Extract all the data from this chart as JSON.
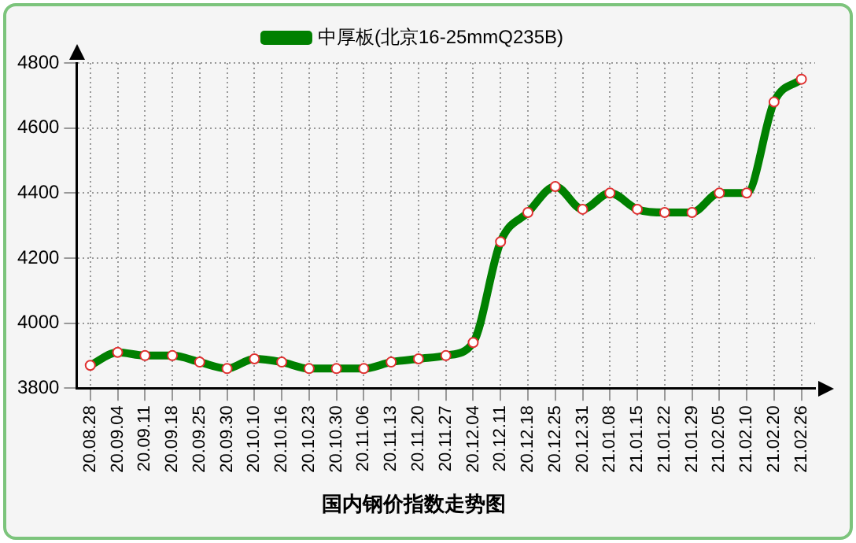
{
  "chart_data": {
    "type": "line",
    "title": "国内钢价指数走势图",
    "categories": [
      "20.08.28",
      "20.09.04",
      "20.09.11",
      "20.09.18",
      "20.09.25",
      "20.09.30",
      "20.10.10",
      "20.10.16",
      "20.10.23",
      "20.10.30",
      "20.11.06",
      "20.11.13",
      "20.11.20",
      "20.11.27",
      "20.12.04",
      "20.12.11",
      "20.12.18",
      "20.12.25",
      "20.12.31",
      "21.01.08",
      "21.01.15",
      "21.01.22",
      "21.01.29",
      "21.02.05",
      "21.02.10",
      "21.02.20",
      "21.02.26"
    ],
    "series": [
      {
        "name": "中厚板(北京16-25mmQ235B)",
        "color": "#008000",
        "values": [
          3870,
          3910,
          3900,
          3900,
          3880,
          3860,
          3890,
          3880,
          3860,
          3860,
          3860,
          3880,
          3890,
          3900,
          3940,
          4250,
          4340,
          4420,
          4350,
          4400,
          4350,
          4340,
          4340,
          4400,
          4400,
          4680,
          4750
        ]
      }
    ],
    "ylim": [
      3800,
      4800
    ],
    "yticks": [
      3800,
      4000,
      4200,
      4400,
      4600,
      4800
    ],
    "grid": true,
    "legend": "top",
    "marker": "circle",
    "line_style": "solid"
  }
}
